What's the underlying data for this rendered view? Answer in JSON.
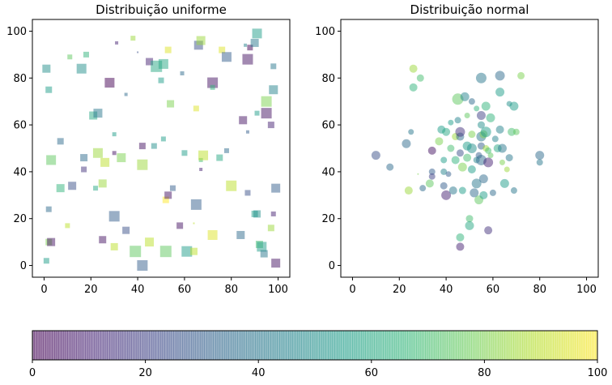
{
  "chart_data": [
    {
      "type": "scatter",
      "title": "Distribuição uniforme",
      "marker": "square",
      "xlim": [
        -5,
        105
      ],
      "ylim": [
        -5,
        105
      ],
      "xticks": [
        "0",
        "20",
        "40",
        "60",
        "80",
        "100"
      ],
      "yticks": [
        "0",
        "20",
        "40",
        "60",
        "80",
        "100"
      ],
      "colormap": "viridis",
      "alpha": 0.5,
      "points": [
        {
          "x": 1,
          "y": 84,
          "c": 50,
          "s": 10
        },
        {
          "x": 2,
          "y": 75,
          "c": 55,
          "s": 8
        },
        {
          "x": 1,
          "y": 2,
          "c": 55,
          "s": 7
        },
        {
          "x": 2,
          "y": 10,
          "c": 80,
          "s": 8
        },
        {
          "x": 3,
          "y": 10,
          "c": 5,
          "s": 10
        },
        {
          "x": 2,
          "y": 24,
          "c": 35,
          "s": 7
        },
        {
          "x": 3,
          "y": 45,
          "c": 75,
          "s": 12
        },
        {
          "x": 7,
          "y": 53,
          "c": 35,
          "s": 8
        },
        {
          "x": 7,
          "y": 33,
          "c": 65,
          "s": 10
        },
        {
          "x": 11,
          "y": 89,
          "c": 75,
          "s": 6
        },
        {
          "x": 10,
          "y": 17,
          "c": 90,
          "s": 6
        },
        {
          "x": 12,
          "y": 34,
          "c": 25,
          "s": 10
        },
        {
          "x": 16,
          "y": 84,
          "c": 50,
          "s": 12
        },
        {
          "x": 18,
          "y": 90,
          "c": 65,
          "s": 7
        },
        {
          "x": 17,
          "y": 46,
          "c": 35,
          "s": 9
        },
        {
          "x": 17,
          "y": 41,
          "c": 15,
          "s": 7
        },
        {
          "x": 21,
          "y": 64,
          "c": 60,
          "s": 10
        },
        {
          "x": 23,
          "y": 65,
          "c": 40,
          "s": 11
        },
        {
          "x": 22,
          "y": 33,
          "c": 60,
          "s": 6
        },
        {
          "x": 23,
          "y": 48,
          "c": 85,
          "s": 12
        },
        {
          "x": 25,
          "y": 35,
          "c": 85,
          "s": 10
        },
        {
          "x": 26,
          "y": 44,
          "c": 90,
          "s": 11
        },
        {
          "x": 25,
          "y": 11,
          "c": 5,
          "s": 9
        },
        {
          "x": 28,
          "y": 78,
          "c": 0,
          "s": 12
        },
        {
          "x": 30,
          "y": 21,
          "c": 30,
          "s": 13
        },
        {
          "x": 30,
          "y": 8,
          "c": 90,
          "s": 9
        },
        {
          "x": 30,
          "y": 48,
          "c": 5,
          "s": 5
        },
        {
          "x": 31,
          "y": 95,
          "c": 10,
          "s": 4
        },
        {
          "x": 30,
          "y": 56,
          "c": 55,
          "s": 5
        },
        {
          "x": 33,
          "y": 46,
          "c": 80,
          "s": 11
        },
        {
          "x": 35,
          "y": 15,
          "c": 25,
          "s": 9
        },
        {
          "x": 35,
          "y": 73,
          "c": 35,
          "s": 4
        },
        {
          "x": 38,
          "y": 97,
          "c": 85,
          "s": 6
        },
        {
          "x": 39,
          "y": 6,
          "c": 75,
          "s": 14
        },
        {
          "x": 40,
          "y": 91,
          "c": 25,
          "s": 2
        },
        {
          "x": 42,
          "y": 43,
          "c": 85,
          "s": 13
        },
        {
          "x": 42,
          "y": 0,
          "c": 30,
          "s": 13
        },
        {
          "x": 42,
          "y": 51,
          "c": 5,
          "s": 8
        },
        {
          "x": 45,
          "y": 87,
          "c": 10,
          "s": 9
        },
        {
          "x": 45,
          "y": 10,
          "c": 90,
          "s": 11
        },
        {
          "x": 47,
          "y": 51,
          "c": 50,
          "s": 7
        },
        {
          "x": 48,
          "y": 85,
          "c": 60,
          "s": 14
        },
        {
          "x": 50,
          "y": 79,
          "c": 55,
          "s": 7
        },
        {
          "x": 51,
          "y": 86,
          "c": 60,
          "s": 12
        },
        {
          "x": 51,
          "y": 54,
          "c": 55,
          "s": 6
        },
        {
          "x": 52,
          "y": 28,
          "c": 100,
          "s": 8
        },
        {
          "x": 52,
          "y": 6,
          "c": 75,
          "s": 14
        },
        {
          "x": 53,
          "y": 92,
          "c": 95,
          "s": 8
        },
        {
          "x": 53,
          "y": 30,
          "c": 5,
          "s": 9
        },
        {
          "x": 54,
          "y": 69,
          "c": 80,
          "s": 9
        },
        {
          "x": 55,
          "y": 33,
          "c": 30,
          "s": 7
        },
        {
          "x": 58,
          "y": 17,
          "c": 5,
          "s": 8
        },
        {
          "x": 59,
          "y": 82,
          "c": 35,
          "s": 5
        },
        {
          "x": 60,
          "y": 48,
          "c": 55,
          "s": 7
        },
        {
          "x": 61,
          "y": 6,
          "c": 55,
          "s": 13
        },
        {
          "x": 64,
          "y": 6,
          "c": 90,
          "s": 9
        },
        {
          "x": 64,
          "y": 18,
          "c": 90,
          "s": 2
        },
        {
          "x": 65,
          "y": 67,
          "c": 95,
          "s": 7
        },
        {
          "x": 65,
          "y": 26,
          "c": 30,
          "s": 13
        },
        {
          "x": 66,
          "y": 94,
          "c": 25,
          "s": 11
        },
        {
          "x": 67,
          "y": 96,
          "c": 85,
          "s": 11
        },
        {
          "x": 67,
          "y": 45,
          "c": 70,
          "s": 5
        },
        {
          "x": 67,
          "y": 41,
          "c": 10,
          "s": 4
        },
        {
          "x": 68,
          "y": 47,
          "c": 90,
          "s": 12
        },
        {
          "x": 72,
          "y": 78,
          "c": 5,
          "s": 13
        },
        {
          "x": 72,
          "y": 76,
          "c": 65,
          "s": 6
        },
        {
          "x": 72,
          "y": 13,
          "c": 95,
          "s": 12
        },
        {
          "x": 75,
          "y": 46,
          "c": 60,
          "s": 8
        },
        {
          "x": 76,
          "y": 92,
          "c": 95,
          "s": 8
        },
        {
          "x": 78,
          "y": 49,
          "c": 35,
          "s": 6
        },
        {
          "x": 78,
          "y": 89,
          "c": 30,
          "s": 12
        },
        {
          "x": 80,
          "y": 34,
          "c": 90,
          "s": 13
        },
        {
          "x": 84,
          "y": 13,
          "c": 35,
          "s": 10
        },
        {
          "x": 85,
          "y": 62,
          "c": 5,
          "s": 10
        },
        {
          "x": 86,
          "y": 94,
          "c": 45,
          "s": 4
        },
        {
          "x": 87,
          "y": 88,
          "c": 5,
          "s": 13
        },
        {
          "x": 88,
          "y": 93,
          "c": 0,
          "s": 7
        },
        {
          "x": 87,
          "y": 31,
          "c": 25,
          "s": 7
        },
        {
          "x": 87,
          "y": 57,
          "c": 30,
          "s": 4
        },
        {
          "x": 90,
          "y": 22,
          "c": 55,
          "s": 8
        },
        {
          "x": 91,
          "y": 22,
          "c": 50,
          "s": 9
        },
        {
          "x": 90,
          "y": 95,
          "c": 40,
          "s": 10
        },
        {
          "x": 91,
          "y": 99,
          "c": 55,
          "s": 12
        },
        {
          "x": 91,
          "y": 65,
          "c": 55,
          "s": 6
        },
        {
          "x": 92,
          "y": 9,
          "c": 70,
          "s": 9
        },
        {
          "x": 93,
          "y": 8,
          "c": 55,
          "s": 12
        },
        {
          "x": 95,
          "y": 70,
          "c": 80,
          "s": 13
        },
        {
          "x": 95,
          "y": 65,
          "c": 5,
          "s": 13
        },
        {
          "x": 94,
          "y": 5,
          "c": 40,
          "s": 9
        },
        {
          "x": 97,
          "y": 60,
          "c": 10,
          "s": 8
        },
        {
          "x": 97,
          "y": 16,
          "c": 85,
          "s": 8
        },
        {
          "x": 98,
          "y": 75,
          "c": 45,
          "s": 11
        },
        {
          "x": 98,
          "y": 85,
          "c": 40,
          "s": 7
        },
        {
          "x": 98,
          "y": 22,
          "c": 10,
          "s": 6
        },
        {
          "x": 99,
          "y": 33,
          "c": 30,
          "s": 11
        },
        {
          "x": 99,
          "y": 1,
          "c": 5,
          "s": 11
        }
      ]
    },
    {
      "type": "scatter",
      "title": "Distribuição normal",
      "marker": "circle",
      "xlim": [
        -5,
        105
      ],
      "ylim": [
        -5,
        105
      ],
      "xticks": [
        "0",
        "20",
        "40",
        "60",
        "80",
        "100"
      ],
      "yticks": [
        "0",
        "20",
        "40",
        "60",
        "80",
        "100"
      ],
      "colormap": "viridis",
      "alpha": 0.5,
      "points": [
        {
          "x": 26,
          "y": 84,
          "c": 85,
          "s": 10
        },
        {
          "x": 29,
          "y": 80,
          "c": 70,
          "s": 9
        },
        {
          "x": 26,
          "y": 76,
          "c": 65,
          "s": 10
        },
        {
          "x": 25,
          "y": 57,
          "c": 40,
          "s": 7
        },
        {
          "x": 23,
          "y": 52,
          "c": 35,
          "s": 11
        },
        {
          "x": 10,
          "y": 47,
          "c": 25,
          "s": 11
        },
        {
          "x": 16,
          "y": 42,
          "c": 35,
          "s": 9
        },
        {
          "x": 24,
          "y": 32,
          "c": 85,
          "s": 10
        },
        {
          "x": 28,
          "y": 39,
          "c": 80,
          "s": 2
        },
        {
          "x": 30,
          "y": 33,
          "c": 35,
          "s": 8
        },
        {
          "x": 33,
          "y": 35,
          "c": 75,
          "s": 10
        },
        {
          "x": 34,
          "y": 40,
          "c": 30,
          "s": 8
        },
        {
          "x": 34,
          "y": 38,
          "c": 20,
          "s": 8
        },
        {
          "x": 34,
          "y": 49,
          "c": 5,
          "s": 10
        },
        {
          "x": 37,
          "y": 53,
          "c": 80,
          "s": 10
        },
        {
          "x": 38,
          "y": 58,
          "c": 55,
          "s": 10
        },
        {
          "x": 39,
          "y": 45,
          "c": 55,
          "s": 8
        },
        {
          "x": 39,
          "y": 34,
          "c": 30,
          "s": 9
        },
        {
          "x": 39,
          "y": 40,
          "c": 45,
          "s": 8
        },
        {
          "x": 40,
          "y": 30,
          "c": 10,
          "s": 12
        },
        {
          "x": 40,
          "y": 57,
          "c": 60,
          "s": 10
        },
        {
          "x": 41,
          "y": 39,
          "c": 30,
          "s": 7
        },
        {
          "x": 42,
          "y": 61,
          "c": 55,
          "s": 7
        },
        {
          "x": 42,
          "y": 50,
          "c": 70,
          "s": 9
        },
        {
          "x": 43,
          "y": 32,
          "c": 40,
          "s": 10
        },
        {
          "x": 44,
          "y": 55,
          "c": 85,
          "s": 9
        },
        {
          "x": 44,
          "y": 45,
          "c": 65,
          "s": 10
        },
        {
          "x": 45,
          "y": 62,
          "c": 45,
          "s": 8
        },
        {
          "x": 45,
          "y": 71,
          "c": 75,
          "s": 14
        },
        {
          "x": 46,
          "y": 48,
          "c": 25,
          "s": 9
        },
        {
          "x": 46,
          "y": 55,
          "c": 35,
          "s": 10
        },
        {
          "x": 46,
          "y": 57,
          "c": 15,
          "s": 12
        },
        {
          "x": 46,
          "y": 12,
          "c": 65,
          "s": 10
        },
        {
          "x": 46,
          "y": 8,
          "c": 10,
          "s": 10
        },
        {
          "x": 47,
          "y": 42,
          "c": 80,
          "s": 11
        },
        {
          "x": 47,
          "y": 32,
          "c": 55,
          "s": 9
        },
        {
          "x": 48,
          "y": 72,
          "c": 45,
          "s": 11
        },
        {
          "x": 49,
          "y": 64,
          "c": 75,
          "s": 7
        },
        {
          "x": 49,
          "y": 51,
          "c": 55,
          "s": 11
        },
        {
          "x": 49,
          "y": 46,
          "c": 70,
          "s": 10
        },
        {
          "x": 50,
          "y": 20,
          "c": 70,
          "s": 9
        },
        {
          "x": 50,
          "y": 17,
          "c": 60,
          "s": 11
        },
        {
          "x": 51,
          "y": 50,
          "c": 50,
          "s": 12
        },
        {
          "x": 51,
          "y": 41,
          "c": 55,
          "s": 10
        },
        {
          "x": 51,
          "y": 56,
          "c": 80,
          "s": 9
        },
        {
          "x": 51,
          "y": 70,
          "c": 35,
          "s": 8
        },
        {
          "x": 52,
          "y": 31,
          "c": 35,
          "s": 11
        },
        {
          "x": 53,
          "y": 35,
          "c": 40,
          "s": 12
        },
        {
          "x": 53,
          "y": 45,
          "c": 45,
          "s": 8
        },
        {
          "x": 53,
          "y": 67,
          "c": 65,
          "s": 7
        },
        {
          "x": 54,
          "y": 28,
          "c": 75,
          "s": 11
        },
        {
          "x": 54,
          "y": 47,
          "c": 30,
          "s": 8
        },
        {
          "x": 55,
          "y": 80,
          "c": 40,
          "s": 13
        },
        {
          "x": 55,
          "y": 64,
          "c": 20,
          "s": 11
        },
        {
          "x": 55,
          "y": 60,
          "c": 50,
          "s": 9
        },
        {
          "x": 55,
          "y": 55,
          "c": 40,
          "s": 12
        },
        {
          "x": 55,
          "y": 51,
          "c": 30,
          "s": 9
        },
        {
          "x": 55,
          "y": 45,
          "c": 35,
          "s": 13
        },
        {
          "x": 56,
          "y": 30,
          "c": 55,
          "s": 10
        },
        {
          "x": 56,
          "y": 37,
          "c": 35,
          "s": 11
        },
        {
          "x": 56,
          "y": 56,
          "c": 80,
          "s": 10
        },
        {
          "x": 57,
          "y": 68,
          "c": 65,
          "s": 11
        },
        {
          "x": 57,
          "y": 57,
          "c": 55,
          "s": 13
        },
        {
          "x": 57,
          "y": 50,
          "c": 85,
          "s": 8
        },
        {
          "x": 58,
          "y": 49,
          "c": 70,
          "s": 8
        },
        {
          "x": 58,
          "y": 44,
          "c": 10,
          "s": 12
        },
        {
          "x": 58,
          "y": 15,
          "c": 15,
          "s": 10
        },
        {
          "x": 59,
          "y": 63,
          "c": 65,
          "s": 11
        },
        {
          "x": 59,
          "y": 47,
          "c": 75,
          "s": 7
        },
        {
          "x": 60,
          "y": 31,
          "c": 35,
          "s": 8
        },
        {
          "x": 61,
          "y": 54,
          "c": 45,
          "s": 8
        },
        {
          "x": 62,
          "y": 50,
          "c": 60,
          "s": 10
        },
        {
          "x": 63,
          "y": 81,
          "c": 35,
          "s": 12
        },
        {
          "x": 63,
          "y": 74,
          "c": 55,
          "s": 11
        },
        {
          "x": 63,
          "y": 58,
          "c": 45,
          "s": 10
        },
        {
          "x": 64,
          "y": 50,
          "c": 40,
          "s": 11
        },
        {
          "x": 64,
          "y": 44,
          "c": 80,
          "s": 7
        },
        {
          "x": 65,
          "y": 35,
          "c": 55,
          "s": 11
        },
        {
          "x": 66,
          "y": 41,
          "c": 85,
          "s": 7
        },
        {
          "x": 67,
          "y": 69,
          "c": 50,
          "s": 7
        },
        {
          "x": 67,
          "y": 46,
          "c": 40,
          "s": 9
        },
        {
          "x": 68,
          "y": 57,
          "c": 70,
          "s": 10
        },
        {
          "x": 69,
          "y": 68,
          "c": 55,
          "s": 11
        },
        {
          "x": 69,
          "y": 32,
          "c": 40,
          "s": 8
        },
        {
          "x": 70,
          "y": 57,
          "c": 75,
          "s": 8
        },
        {
          "x": 72,
          "y": 81,
          "c": 80,
          "s": 9
        },
        {
          "x": 80,
          "y": 47,
          "c": 35,
          "s": 11
        },
        {
          "x": 80,
          "y": 44,
          "c": 40,
          "s": 8
        }
      ]
    }
  ],
  "colorbar": {
    "colormap": "viridis",
    "range": [
      0,
      100
    ],
    "ticks": [
      "0",
      "20",
      "40",
      "60",
      "80",
      "100"
    ]
  },
  "colors": {
    "viridis_stops": [
      "#440154",
      "#482878",
      "#3e4989",
      "#31688e",
      "#26828e",
      "#1f9e89",
      "#35b779",
      "#6ece58",
      "#b5de2b",
      "#fde725"
    ]
  }
}
